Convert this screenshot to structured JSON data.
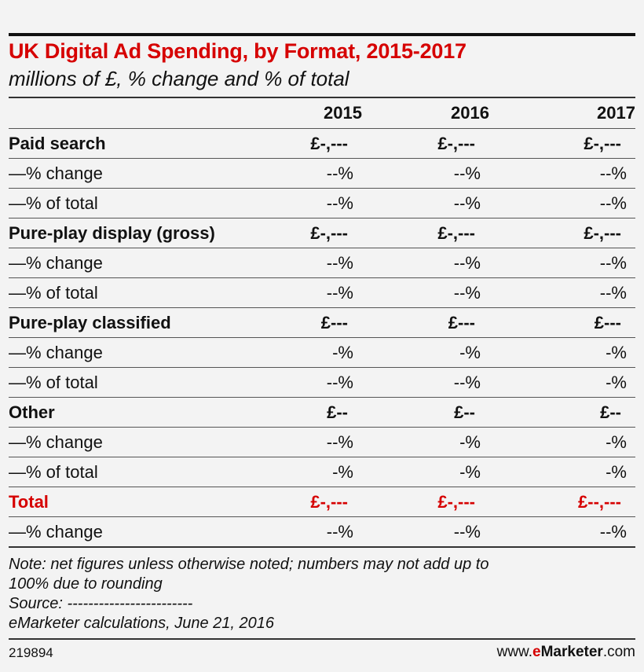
{
  "chart_data": {
    "type": "table",
    "title": "UK Digital Ad Spending, by Format, 2015-2017",
    "subtitle": "millions of £, % change and % of total",
    "columns": [
      "2015",
      "2016",
      "2017"
    ],
    "rows": [
      {
        "label": "Paid search",
        "kind": "main",
        "values": [
          "£-,---",
          "£-,---",
          "£-,---"
        ]
      },
      {
        "label": "—% change",
        "kind": "sub",
        "values": [
          "--%",
          "--%",
          "--%"
        ]
      },
      {
        "label": "—% of total",
        "kind": "sub",
        "values": [
          "--%",
          "--%",
          "--%"
        ]
      },
      {
        "label": "Pure-play display (gross)",
        "kind": "main",
        "values": [
          "£-,---",
          "£-,---",
          "£-,---"
        ]
      },
      {
        "label": "—% change",
        "kind": "sub",
        "values": [
          "--%",
          "--%",
          "--%"
        ]
      },
      {
        "label": "—% of total",
        "kind": "sub",
        "values": [
          "--%",
          "--%",
          "--%"
        ]
      },
      {
        "label": "Pure-play classified",
        "kind": "main",
        "values": [
          "£---",
          "£---",
          "£---"
        ]
      },
      {
        "label": "—% change",
        "kind": "sub",
        "values": [
          "-%",
          "-%",
          "-%"
        ]
      },
      {
        "label": "—% of total",
        "kind": "sub",
        "values": [
          "--%",
          "--%",
          "-%"
        ]
      },
      {
        "label": "Other",
        "kind": "main",
        "values": [
          "£--",
          "£--",
          "£--"
        ]
      },
      {
        "label": "—% change",
        "kind": "sub",
        "values": [
          "--%",
          "-%",
          "-%"
        ]
      },
      {
        "label": "—% of total",
        "kind": "sub",
        "values": [
          "-%",
          "-%",
          "-%"
        ]
      },
      {
        "label": "Total",
        "kind": "total",
        "values": [
          "£-,---",
          "£-,---",
          "£--,---"
        ]
      },
      {
        "label": "—% change",
        "kind": "sub",
        "values": [
          "--%",
          "--%",
          "--%"
        ]
      }
    ],
    "accent_color": "#d60000"
  },
  "notes": {
    "line1": "Note: net figures unless otherwise noted; numbers may not add up to",
    "line2": "100% due to rounding",
    "line3": "Source: ------------------------",
    "line4": "eMarketer calculations, June 21, 2016"
  },
  "footer": {
    "id": "219894",
    "brand_prefix": "www.",
    "brand_e": "e",
    "brand_main": "Marketer",
    "brand_suffix": ".com"
  }
}
